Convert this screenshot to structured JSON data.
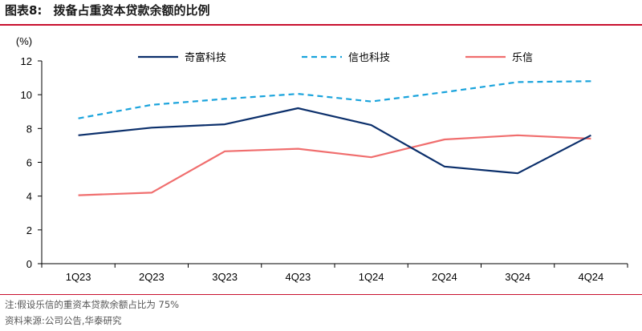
{
  "header": {
    "figure_label": "图表8:",
    "title": "拨备占重资本贷款余额的比例"
  },
  "footer": {
    "note": "注:假设乐信的重资本贷款余额占比为 75%",
    "source": "资料来源:公司公告,华泰研究"
  },
  "colors": {
    "accent_rule": "#c8102e",
    "qifu": "#0b2f6b",
    "xinye": "#19a3dc",
    "lexin": "#f06e6e"
  },
  "chart_data": {
    "type": "line",
    "title": "拨备占重资本贷款余额的比例",
    "ylabel": "(%)",
    "xlabel": "",
    "ylim": [
      0,
      12
    ],
    "yticks": [
      "0",
      "2",
      "4",
      "6",
      "8",
      "10",
      "12"
    ],
    "categories": [
      "1Q23",
      "2Q23",
      "3Q23",
      "4Q23",
      "1Q24",
      "2Q24",
      "3Q24",
      "4Q24"
    ],
    "legend_position": "top",
    "series": [
      {
        "name": "奇富科技",
        "style": "solid",
        "color": "#0b2f6b",
        "values": [
          7.6,
          8.05,
          8.25,
          9.2,
          8.2,
          5.75,
          5.35,
          7.6
        ]
      },
      {
        "name": "信也科技",
        "style": "dashed",
        "color": "#19a3dc",
        "values": [
          8.6,
          9.4,
          9.75,
          10.05,
          9.6,
          10.15,
          10.75,
          10.8
        ]
      },
      {
        "name": "乐信",
        "style": "solid",
        "color": "#f06e6e",
        "values": [
          4.05,
          4.2,
          6.65,
          6.8,
          6.3,
          7.35,
          7.6,
          7.4
        ]
      }
    ]
  }
}
